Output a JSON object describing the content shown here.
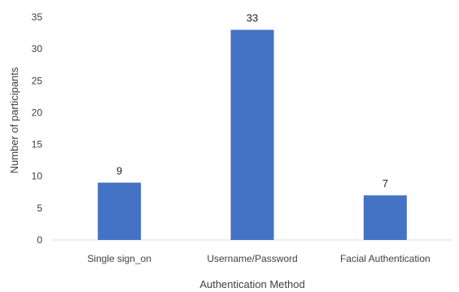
{
  "chart_data": {
    "type": "bar",
    "categories": [
      "Single sign_on",
      "Username/Password",
      "Facial Authentication"
    ],
    "values": [
      9,
      33,
      7
    ],
    "data_labels": [
      "9",
      "33",
      "7"
    ],
    "title": "",
    "xlabel": "Authentication Method",
    "ylabel": "Number of participants",
    "ylim": [
      0,
      35
    ],
    "yticks": [
      "0",
      "5",
      "10",
      "15",
      "20",
      "25",
      "30",
      "35"
    ],
    "grid": false,
    "legend": "none",
    "bar_color": "#4472C4"
  }
}
